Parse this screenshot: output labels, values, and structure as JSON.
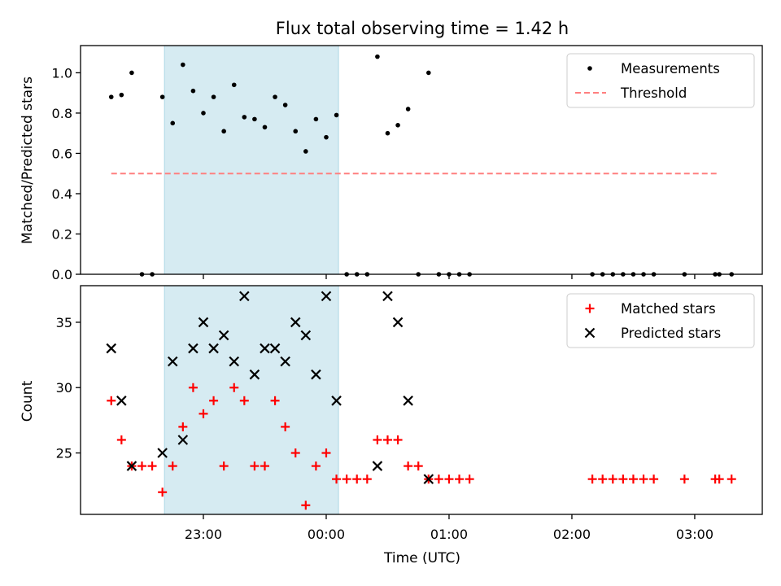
{
  "title": "Flux total observing time = 1.42 h",
  "xlabel": "Time (UTC)",
  "colors": {
    "measurement": "#000000",
    "threshold": "#ff7f7f",
    "matched": "#ff0000",
    "predicted": "#000000",
    "highlight": "#add8e6"
  },
  "chart_data": [
    {
      "type": "scatter",
      "ylabel": "Matched/Predicted stars",
      "xlim": [
        "22:00",
        "03:33"
      ],
      "ylim": [
        0,
        1.135
      ],
      "yticks": [
        0.0,
        0.2,
        0.4,
        0.6,
        0.8,
        1.0
      ],
      "xticks": [
        "23:00",
        "00:00",
        "01:00",
        "02:00",
        "03:00"
      ],
      "highlight_span": [
        "22:41",
        "00:06"
      ],
      "legend_position": "top-right",
      "series": [
        {
          "name": "Measurements",
          "marker": "dot",
          "x": [
            "22:15",
            "22:20",
            "22:25",
            "22:30",
            "22:35",
            "22:40",
            "22:45",
            "22:50",
            "22:55",
            "23:00",
            "23:05",
            "23:10",
            "23:15",
            "23:20",
            "23:25",
            "23:30",
            "23:35",
            "23:40",
            "23:45",
            "23:50",
            "23:55",
            "00:00",
            "00:05",
            "00:10",
            "00:15",
            "00:20",
            "00:25",
            "00:30",
            "00:35",
            "00:40",
            "00:45",
            "00:50",
            "00:55",
            "01:00",
            "01:05",
            "01:10",
            "02:10",
            "02:15",
            "02:20",
            "02:25",
            "02:30",
            "02:35",
            "02:40",
            "02:55",
            "03:10",
            "03:12",
            "03:18"
          ],
          "y": [
            0.88,
            0.89,
            1.0,
            0.0,
            0.0,
            0.88,
            0.75,
            1.04,
            0.91,
            0.8,
            0.88,
            0.71,
            0.94,
            0.78,
            0.77,
            0.73,
            0.88,
            0.84,
            0.71,
            0.61,
            0.77,
            0.68,
            0.79,
            0.0,
            0.0,
            0.0,
            1.08,
            0.7,
            0.74,
            0.82,
            0.0,
            1.0,
            0.0,
            0.0,
            0.0,
            0.0,
            0.0,
            0.0,
            0.0,
            0.0,
            0.0,
            0.0,
            0.0,
            0.0,
            0.0,
            0.0,
            0.0
          ]
        },
        {
          "name": "Threshold",
          "style": "dashed",
          "x": [
            "22:15",
            "03:12"
          ],
          "y": [
            0.5,
            0.5
          ]
        }
      ]
    },
    {
      "type": "scatter",
      "ylabel": "Count",
      "xlim": [
        "22:00",
        "03:33"
      ],
      "ylim": [
        20.3,
        37.8
      ],
      "yticks": [
        25,
        30,
        35
      ],
      "xticks": [
        "23:00",
        "00:00",
        "01:00",
        "02:00",
        "03:00"
      ],
      "highlight_span": [
        "22:41",
        "00:06"
      ],
      "legend_position": "top-right",
      "series": [
        {
          "name": "Matched stars",
          "marker": "plus",
          "x": [
            "22:15",
            "22:20",
            "22:25",
            "22:30",
            "22:35",
            "22:40",
            "22:45",
            "22:50",
            "22:55",
            "23:00",
            "23:05",
            "23:10",
            "23:15",
            "23:20",
            "23:25",
            "23:30",
            "23:35",
            "23:40",
            "23:45",
            "23:50",
            "23:55",
            "00:00",
            "00:05",
            "00:10",
            "00:15",
            "00:20",
            "00:25",
            "00:30",
            "00:35",
            "00:40",
            "00:45",
            "00:50",
            "00:55",
            "01:00",
            "01:05",
            "01:10",
            "02:10",
            "02:15",
            "02:20",
            "02:25",
            "02:30",
            "02:35",
            "02:40",
            "02:55",
            "03:10",
            "03:12",
            "03:18"
          ],
          "y": [
            29,
            26,
            24,
            24,
            24,
            22,
            24,
            27,
            30,
            28,
            29,
            24,
            30,
            29,
            24,
            24,
            29,
            27,
            25,
            21,
            24,
            25,
            23,
            23,
            23,
            23,
            26,
            26,
            26,
            24,
            24,
            23,
            23,
            23,
            23,
            23,
            23,
            23,
            23,
            23,
            23,
            23,
            23,
            23,
            23,
            23,
            23
          ]
        },
        {
          "name": "Predicted stars",
          "marker": "x",
          "x": [
            "22:15",
            "22:20",
            "22:25",
            "22:40",
            "22:45",
            "22:50",
            "22:55",
            "23:00",
            "23:05",
            "23:10",
            "23:15",
            "23:20",
            "23:25",
            "23:30",
            "23:35",
            "23:40",
            "23:45",
            "23:50",
            "23:55",
            "00:00",
            "00:05",
            "00:25",
            "00:30",
            "00:35",
            "00:40",
            "00:50"
          ],
          "y": [
            33,
            29,
            24,
            25,
            32,
            26,
            33,
            35,
            33,
            34,
            32,
            37,
            31,
            33,
            33,
            32,
            35,
            34,
            31,
            37,
            29,
            24,
            37,
            35,
            29,
            23
          ]
        }
      ]
    }
  ]
}
